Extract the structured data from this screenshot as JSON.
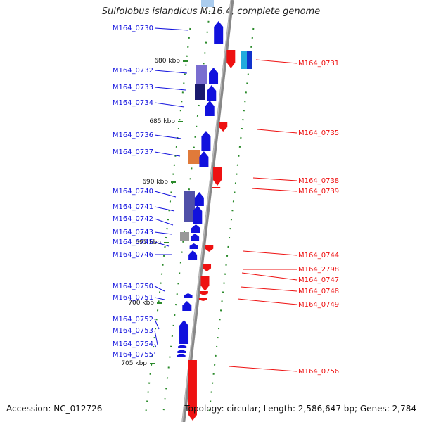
{
  "title": "Sulfolobus islandicus M.16.4, complete genome",
  "footer": {
    "accession": "Accession: NC_012726",
    "topology": "Topology: circular; Length: 2,586,647 bp; Genes: 2,784"
  },
  "colors": {
    "forward_strand": "#1111dd",
    "reverse_strand": "#ee1111",
    "backbone": "#888888",
    "gc_dots": "#2a8a2a"
  },
  "kbp_labels": [
    "680 kbp",
    "685 kbp",
    "690 kbp",
    "695 kbp",
    "700 kbp",
    "705 kbp"
  ],
  "genes_forward": [
    {
      "name": "M164_0730"
    },
    {
      "name": "M164_0732"
    },
    {
      "name": "M164_0733"
    },
    {
      "name": "M164_0734"
    },
    {
      "name": "M164_0736"
    },
    {
      "name": "M164_0737"
    },
    {
      "name": "M164_0740"
    },
    {
      "name": "M164_0741"
    },
    {
      "name": "M164_0742"
    },
    {
      "name": "M164_0743"
    },
    {
      "name": "M164_0745"
    },
    {
      "name": "M164_0746"
    },
    {
      "name": "M164_0750"
    },
    {
      "name": "M164_0751"
    },
    {
      "name": "M164_0752"
    },
    {
      "name": "M164_0753"
    },
    {
      "name": "M164_0754"
    },
    {
      "name": "M164_0755"
    }
  ],
  "genes_reverse": [
    {
      "name": "M164_0731"
    },
    {
      "name": "M164_0735"
    },
    {
      "name": "M164_0738"
    },
    {
      "name": "M164_0739"
    },
    {
      "name": "M164_0744"
    },
    {
      "name": "M164_2798"
    },
    {
      "name": "M164_0747"
    },
    {
      "name": "M164_0748"
    },
    {
      "name": "M164_0749"
    },
    {
      "name": "M164_0756"
    }
  ]
}
